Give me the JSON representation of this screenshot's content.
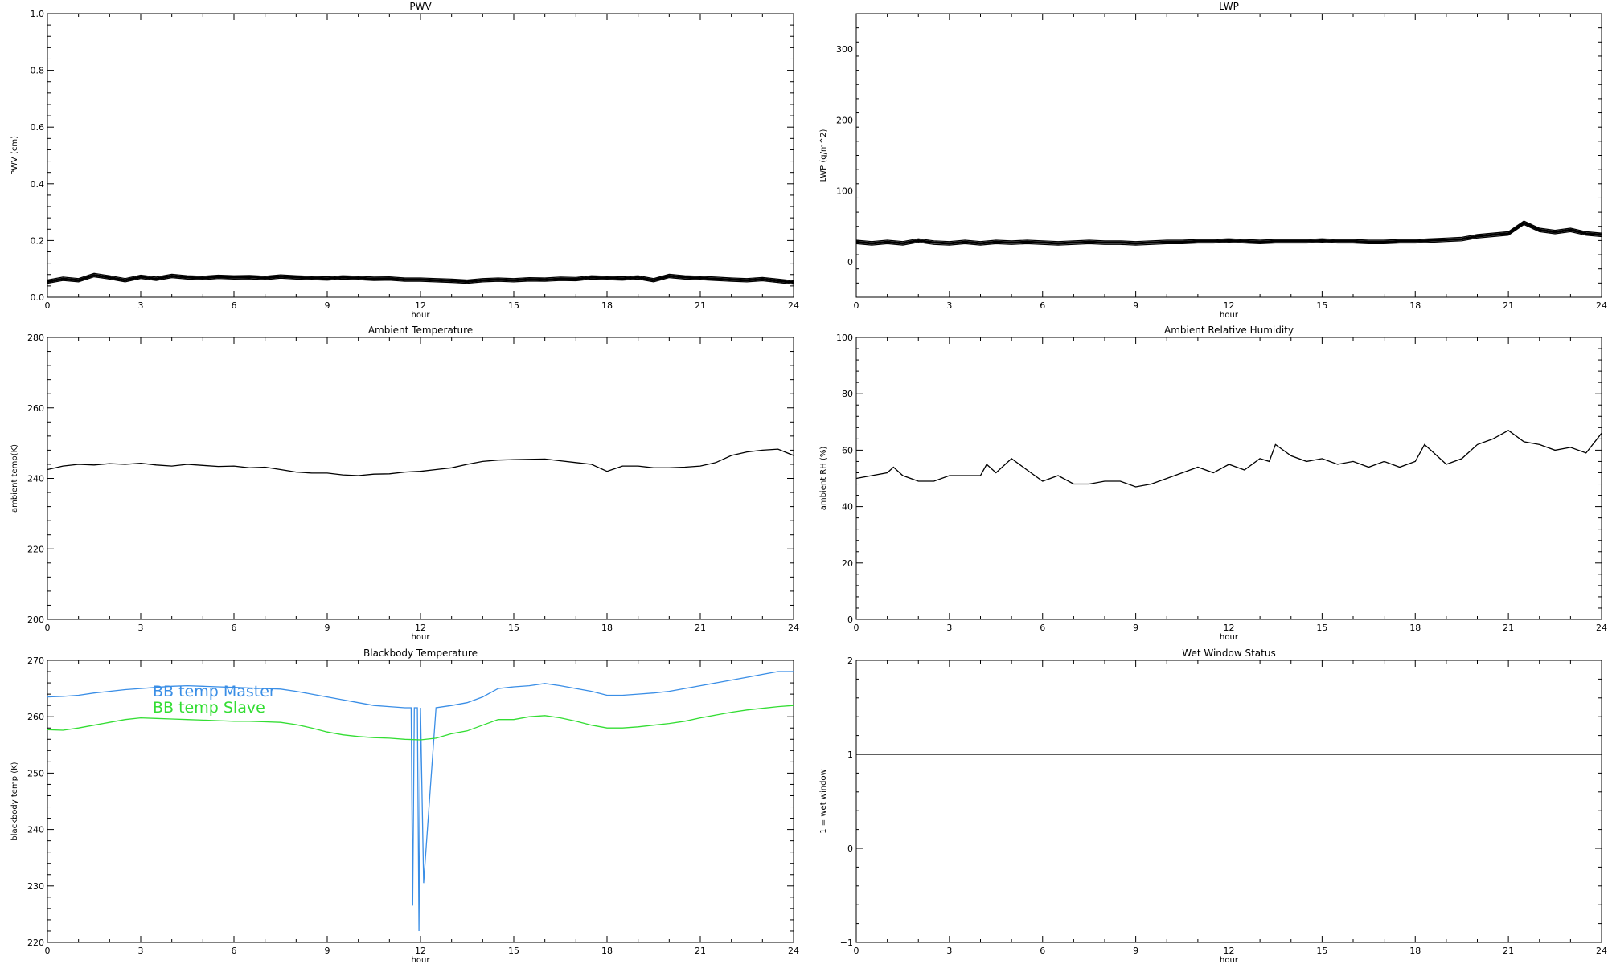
{
  "chart_data": [
    {
      "id": "pwv",
      "type": "scatter",
      "title": "PWV",
      "xlabel": "hour",
      "ylabel": "PWV (cm)",
      "xlim": [
        0,
        24
      ],
      "ylim": [
        0,
        1.0
      ],
      "xticks": [
        0,
        3,
        6,
        9,
        12,
        15,
        18,
        21,
        24
      ],
      "yticks": [
        0.0,
        0.2,
        0.4,
        0.6,
        0.8,
        1.0
      ],
      "ytick_labels": [
        "0.0",
        "0.2",
        "0.4",
        "0.6",
        "0.8",
        "1.0"
      ],
      "series": [
        {
          "color": "#000000",
          "band": 0.006,
          "x": [
            0,
            0.5,
            1,
            1.5,
            2,
            2.5,
            3,
            3.5,
            4,
            4.5,
            5,
            5.5,
            6,
            6.5,
            7,
            7.5,
            8,
            8.5,
            9,
            9.5,
            10,
            10.5,
            11,
            11.5,
            12,
            12.5,
            13,
            13.5,
            14,
            14.5,
            15,
            15.5,
            16,
            16.5,
            17,
            17.5,
            18,
            18.5,
            19,
            19.5,
            20,
            20.5,
            21,
            21.5,
            22,
            22.5,
            23,
            23.5,
            24
          ],
          "y": [
            0.055,
            0.065,
            0.06,
            0.078,
            0.07,
            0.06,
            0.072,
            0.065,
            0.075,
            0.07,
            0.068,
            0.072,
            0.07,
            0.071,
            0.068,
            0.073,
            0.07,
            0.068,
            0.066,
            0.07,
            0.068,
            0.065,
            0.066,
            0.062,
            0.062,
            0.06,
            0.058,
            0.055,
            0.06,
            0.062,
            0.06,
            0.063,
            0.062,
            0.065,
            0.064,
            0.07,
            0.068,
            0.066,
            0.07,
            0.06,
            0.075,
            0.07,
            0.068,
            0.065,
            0.062,
            0.06,
            0.064,
            0.058,
            0.052
          ]
        }
      ]
    },
    {
      "id": "lwp",
      "type": "scatter",
      "title": "LWP",
      "xlabel": "hour",
      "ylabel": "LWP (g/m^2)",
      "xlim": [
        0,
        24
      ],
      "ylim": [
        -50,
        350
      ],
      "xticks": [
        0,
        3,
        6,
        9,
        12,
        15,
        18,
        21,
        24
      ],
      "yticks": [
        0,
        100,
        200,
        300
      ],
      "ytick_labels": [
        "0",
        "100",
        "200",
        "300"
      ],
      "series": [
        {
          "color": "#000000",
          "band": 2.5,
          "x": [
            0,
            0.5,
            1,
            1.5,
            2,
            2.5,
            3,
            3.5,
            4,
            4.5,
            5,
            5.5,
            6,
            6.5,
            7,
            7.5,
            8,
            8.5,
            9,
            9.5,
            10,
            10.5,
            11,
            11.5,
            12,
            12.5,
            13,
            13.5,
            14,
            14.5,
            15,
            15.5,
            16,
            16.5,
            17,
            17.5,
            18,
            18.5,
            19,
            19.5,
            20,
            20.5,
            21,
            21.5,
            22,
            22.5,
            23,
            23.5,
            24
          ],
          "y": [
            28,
            26,
            28,
            26,
            30,
            27,
            26,
            28,
            26,
            28,
            27,
            28,
            27,
            26,
            27,
            28,
            27,
            27,
            26,
            27,
            28,
            28,
            29,
            29,
            30,
            29,
            28,
            29,
            29,
            29,
            30,
            29,
            29,
            28,
            28,
            29,
            29,
            30,
            31,
            32,
            36,
            38,
            40,
            55,
            45,
            42,
            45,
            40,
            38
          ]
        }
      ]
    },
    {
      "id": "ambient-temp",
      "type": "line",
      "title": "Ambient Temperature",
      "xlabel": "hour",
      "ylabel": "ambient temp(K)",
      "xlim": [
        0,
        24
      ],
      "ylim": [
        200,
        280
      ],
      "xticks": [
        0,
        3,
        6,
        9,
        12,
        15,
        18,
        21,
        24
      ],
      "yticks": [
        200,
        220,
        240,
        260,
        280
      ],
      "ytick_labels": [
        "200",
        "220",
        "240",
        "260",
        "280"
      ],
      "series": [
        {
          "color": "#000000",
          "x": [
            0,
            0.5,
            1,
            1.5,
            2,
            2.5,
            3,
            3.5,
            4,
            4.5,
            5,
            5.5,
            6,
            6.5,
            7,
            7.5,
            8,
            8.5,
            9,
            9.5,
            10,
            10.5,
            11,
            11.5,
            12,
            12.5,
            13,
            13.5,
            14,
            14.5,
            15,
            15.5,
            16,
            16.5,
            17,
            17.5,
            18,
            18.5,
            19,
            19.5,
            20,
            20.5,
            21,
            21.5,
            22,
            22.5,
            23,
            23.5,
            24
          ],
          "y": [
            242.5,
            243.5,
            244,
            243.8,
            244.2,
            244,
            244.3,
            243.8,
            243.5,
            244,
            243.7,
            243.4,
            243.5,
            243,
            243.2,
            242.5,
            241.8,
            241.5,
            241.5,
            241,
            240.8,
            241.2,
            241.3,
            241.8,
            242,
            242.5,
            243,
            244,
            244.8,
            245.2,
            245.3,
            245.4,
            245.5,
            245,
            244.5,
            244,
            242,
            243.5,
            243.5,
            243,
            243,
            243.2,
            243.5,
            244.5,
            246.5,
            247.5,
            248,
            248.3,
            246.5
          ]
        }
      ]
    },
    {
      "id": "ambient-rh",
      "type": "line",
      "title": "Ambient Relative Humidity",
      "xlabel": "hour",
      "ylabel": "ambient RH (%)",
      "xlim": [
        0,
        24
      ],
      "ylim": [
        0,
        100
      ],
      "xticks": [
        0,
        3,
        6,
        9,
        12,
        15,
        18,
        21,
        24
      ],
      "yticks": [
        0,
        20,
        40,
        60,
        80,
        100
      ],
      "ytick_labels": [
        "0",
        "20",
        "40",
        "60",
        "80",
        "100"
      ],
      "series": [
        {
          "color": "#000000",
          "x": [
            0,
            0.5,
            1,
            1.2,
            1.5,
            2,
            2.5,
            3,
            3.5,
            4,
            4.2,
            4.5,
            5,
            5.5,
            6,
            6.5,
            7,
            7.5,
            8,
            8.5,
            9,
            9.5,
            10,
            10.5,
            11,
            11.5,
            12,
            12.5,
            13,
            13.3,
            13.5,
            14,
            14.5,
            15,
            15.5,
            16,
            16.5,
            17,
            17.5,
            18,
            18.3,
            18.5,
            19,
            19.5,
            20,
            20.5,
            21,
            21.5,
            22,
            22.5,
            23,
            23.5,
            24
          ],
          "y": [
            50,
            51,
            52,
            54,
            51,
            49,
            49,
            51,
            51,
            51,
            55,
            52,
            57,
            53,
            49,
            51,
            48,
            48,
            49,
            49,
            47,
            48,
            50,
            52,
            54,
            52,
            55,
            53,
            57,
            56,
            62,
            58,
            56,
            57,
            55,
            56,
            54,
            56,
            54,
            56,
            62,
            60,
            55,
            57,
            62,
            64,
            67,
            63,
            62,
            60,
            61,
            59,
            66
          ]
        }
      ]
    },
    {
      "id": "blackbody-temp",
      "type": "line",
      "title": "Blackbody Temperature",
      "xlabel": "hour",
      "ylabel": "blackbody temp (K)",
      "xlim": [
        0,
        24
      ],
      "ylim": [
        220,
        270
      ],
      "xticks": [
        0,
        3,
        6,
        9,
        12,
        15,
        18,
        21,
        24
      ],
      "yticks": [
        220,
        230,
        240,
        250,
        260,
        270
      ],
      "ytick_labels": [
        "220",
        "230",
        "240",
        "250",
        "260",
        "270"
      ],
      "legend": {
        "placement": "top-left",
        "items": [
          "BB temp Master",
          "BB temp Slave"
        ]
      },
      "series": [
        {
          "name": "BB temp Master",
          "color": "#3a8ee6",
          "x": [
            0,
            0.5,
            1,
            1.5,
            2,
            2.5,
            3,
            3.5,
            4,
            4.5,
            5,
            5.5,
            6,
            6.5,
            7,
            7.5,
            8,
            8.5,
            9,
            9.5,
            10,
            10.5,
            11,
            11.5,
            11.7,
            11.75,
            11.8,
            11.9,
            11.95,
            12,
            12.1,
            12.5,
            13,
            13.5,
            14,
            14.5,
            15,
            15.5,
            16,
            16.5,
            17,
            17.5,
            18,
            18.5,
            19,
            19.5,
            20,
            20.5,
            21,
            21.5,
            22,
            22.5,
            23,
            23.5,
            24
          ],
          "y": [
            263.5,
            263.6,
            263.8,
            264.2,
            264.5,
            264.8,
            265,
            265.2,
            265.4,
            265.5,
            265.4,
            265.3,
            265.2,
            265.1,
            265,
            264.9,
            264.5,
            264,
            263.5,
            263,
            262.5,
            262,
            261.8,
            261.6,
            261.6,
            226.5,
            261.6,
            261.6,
            222,
            261.6,
            230.5,
            261.6,
            262,
            262.5,
            263.5,
            265,
            265.3,
            265.5,
            265.9,
            265.5,
            265,
            264.5,
            263.8,
            263.8,
            264,
            264.2,
            264.5,
            265,
            265.5,
            266,
            266.5,
            267,
            267.5,
            268,
            268
          ]
        },
        {
          "name": "BB temp Slave",
          "color": "#33dd33",
          "x": [
            0,
            0.5,
            1,
            1.5,
            2,
            2.5,
            3,
            3.5,
            4,
            4.5,
            5,
            5.5,
            6,
            6.5,
            7,
            7.5,
            8,
            8.5,
            9,
            9.5,
            10,
            10.5,
            11,
            11.5,
            12,
            12.5,
            13,
            13.5,
            14,
            14.5,
            15,
            15.5,
            16,
            16.5,
            17,
            17.5,
            18,
            18.5,
            19,
            19.5,
            20,
            20.5,
            21,
            21.5,
            22,
            22.5,
            23,
            23.5,
            24
          ],
          "y": [
            257.7,
            257.6,
            258,
            258.5,
            259,
            259.5,
            259.8,
            259.7,
            259.6,
            259.5,
            259.4,
            259.3,
            259.2,
            259.2,
            259.1,
            259,
            258.6,
            258,
            257.3,
            256.8,
            256.5,
            256.3,
            256.2,
            256,
            255.9,
            256.2,
            257,
            257.5,
            258.5,
            259.5,
            259.5,
            260,
            260.2,
            259.8,
            259.2,
            258.5,
            258,
            258,
            258.2,
            258.5,
            258.8,
            259.2,
            259.8,
            260.3,
            260.8,
            261.2,
            261.5,
            261.8,
            262
          ]
        }
      ]
    },
    {
      "id": "wet-window",
      "type": "line",
      "title": "Wet Window Status",
      "xlabel": "hour",
      "ylabel": "1 = wet window",
      "xlim": [
        0,
        24
      ],
      "ylim": [
        -1,
        2
      ],
      "xticks": [
        0,
        3,
        6,
        9,
        12,
        15,
        18,
        21,
        24
      ],
      "yticks": [
        -1,
        0,
        1,
        2
      ],
      "ytick_labels": [
        "−1",
        "0",
        "1",
        "2"
      ],
      "series": [
        {
          "color": "#000000",
          "x": [
            0,
            24
          ],
          "y": [
            1,
            1
          ]
        }
      ]
    }
  ]
}
